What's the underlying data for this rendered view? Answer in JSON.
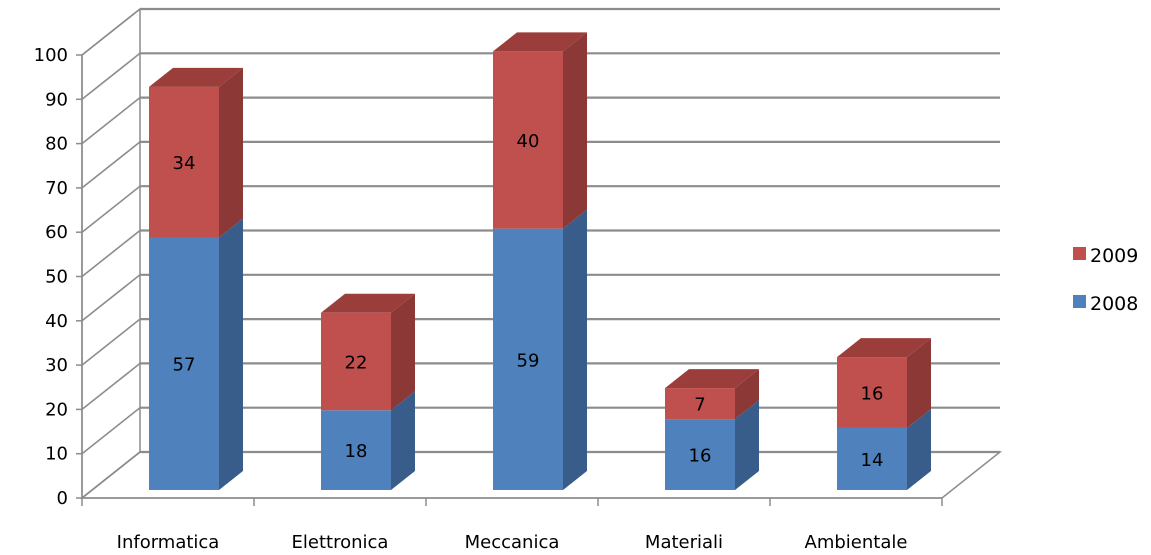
{
  "chart_data": {
    "type": "bar",
    "stacked": true,
    "style": "3d-column",
    "categories": [
      "Informatica",
      "Elettronica",
      "Meccanica",
      "Materiali",
      "Ambientale"
    ],
    "series": [
      {
        "name": "2008",
        "values": [
          57,
          18,
          59,
          16,
          14
        ],
        "color": "#4f81bd",
        "side_color": "#385d8a",
        "top_color": "#4a6f9f"
      },
      {
        "name": "2009",
        "values": [
          34,
          22,
          40,
          7,
          16
        ],
        "color": "#c0504d",
        "side_color": "#8c3836",
        "top_color": "#9b3d3a"
      }
    ],
    "ylim": [
      0,
      100
    ],
    "y_ticks": [
      "0",
      "10",
      "20",
      "30",
      "40",
      "50",
      "60",
      "70",
      "80",
      "90",
      "100"
    ],
    "grid": true,
    "legend_position": "right",
    "title": "",
    "xlabel": "",
    "ylabel": ""
  }
}
